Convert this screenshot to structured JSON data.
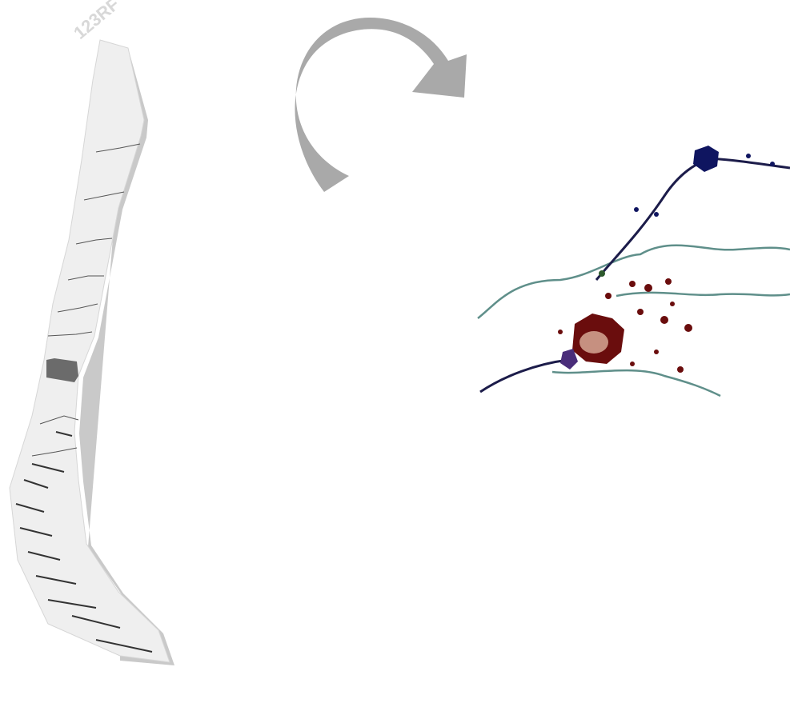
{
  "watermark": "123RF"
}
